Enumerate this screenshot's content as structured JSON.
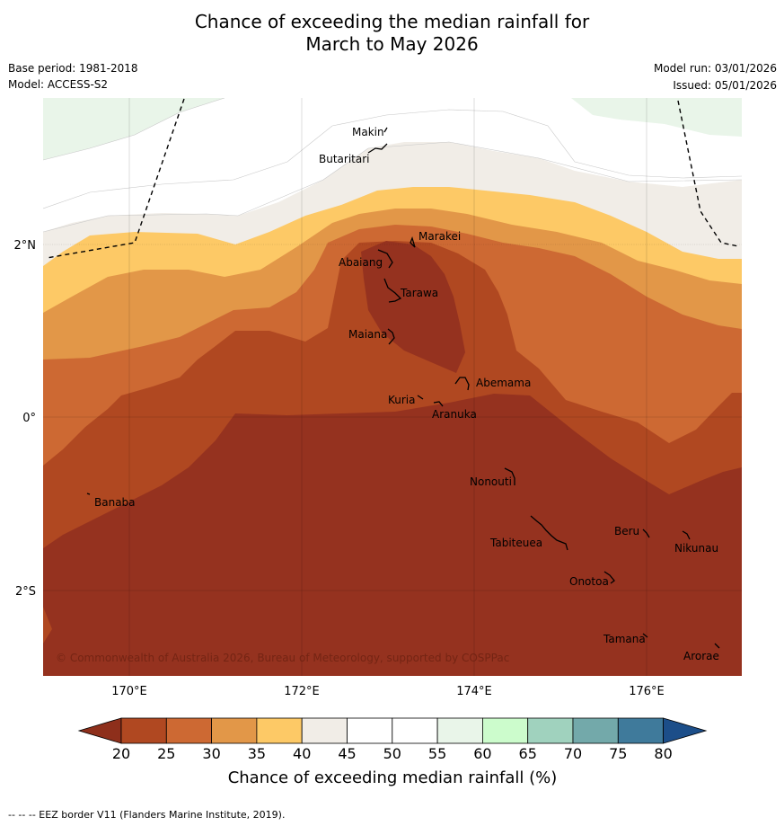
{
  "title": {
    "line1": "Chance of exceeding the median rainfall for",
    "line2": "March to May 2026"
  },
  "info": {
    "base_period": "Base period: 1981-2018",
    "model": "Model: ACCESS-S2",
    "model_run": "Model run: 03/01/2026",
    "issued": "Issued: 05/01/2026"
  },
  "map": {
    "lat_labels": [
      "2°N",
      "0°",
      "2°S"
    ],
    "lon_labels": [
      "170°E",
      "172°E",
      "174°E",
      "176°E"
    ],
    "places": [
      {
        "name": "Makin"
      },
      {
        "name": "Butaritari"
      },
      {
        "name": "Marakei"
      },
      {
        "name": "Abaiang"
      },
      {
        "name": "Tarawa"
      },
      {
        "name": "Maiana"
      },
      {
        "name": "Abemama"
      },
      {
        "name": "Kuria"
      },
      {
        "name": "Aranuka"
      },
      {
        "name": "Banaba"
      },
      {
        "name": "Nonouti"
      },
      {
        "name": "Beru"
      },
      {
        "name": "Tabiteuea"
      },
      {
        "name": "Nikunau"
      },
      {
        "name": "Onotoa"
      },
      {
        "name": "Tamana"
      },
      {
        "name": "Arorae"
      }
    ],
    "copyright": "© Commonwealth of Australia 2026, Bureau of Meteorology, supported by COSPPac"
  },
  "legend": {
    "title": "Chance of exceeding median rainfall (%)",
    "ticks": [
      "20",
      "25",
      "30",
      "35",
      "40",
      "45",
      "50",
      "55",
      "60",
      "65",
      "70",
      "75",
      "80"
    ],
    "colors": {
      "below20": "#8e2f1b",
      "c20_25": "#b04821",
      "c25_30": "#cd6933",
      "c30_35": "#e29748",
      "c35_40": "#fdc966",
      "c40_45": "#f1ede7",
      "c45_50": "#ffffff",
      "c50_55": "#ffffff",
      "c55_60": "#e9f5e9",
      "c60_65": "#ccfccc",
      "c65_70": "#a0d2be",
      "c70_75": "#73a9aa",
      "c75_80": "#3f7a9b",
      "above80": "#1c4e89",
      "deep": "#95321f"
    }
  },
  "footnote": "--  --  -- EEZ border V11 (Flanders Marine Institute, 2019)."
}
